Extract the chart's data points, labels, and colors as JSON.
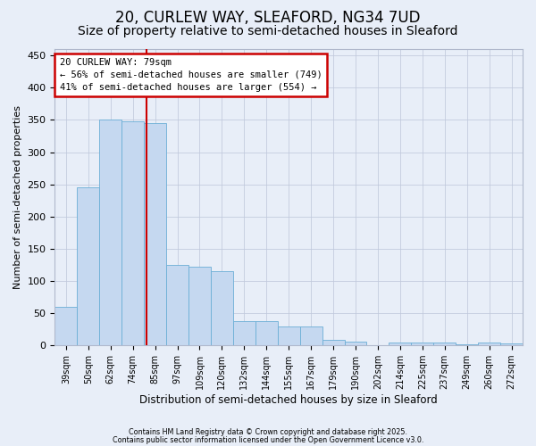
{
  "title": "20, CURLEW WAY, SLEAFORD, NG34 7UD",
  "subtitle": "Size of property relative to semi-detached houses in Sleaford",
  "xlabel": "Distribution of semi-detached houses by size in Sleaford",
  "ylabel": "Number of semi-detached properties",
  "categories": [
    "39sqm",
    "50sqm",
    "62sqm",
    "74sqm",
    "85sqm",
    "97sqm",
    "109sqm",
    "120sqm",
    "132sqm",
    "144sqm",
    "155sqm",
    "167sqm",
    "179sqm",
    "190sqm",
    "202sqm",
    "214sqm",
    "225sqm",
    "237sqm",
    "249sqm",
    "260sqm",
    "272sqm"
  ],
  "bar_heights": [
    60,
    245,
    350,
    348,
    345,
    125,
    122,
    115,
    38,
    38,
    30,
    30,
    8,
    6,
    0,
    5,
    5,
    4,
    2,
    5,
    3
  ],
  "bar_color": "#c5d8f0",
  "bar_edge_color": "#6baed6",
  "vline_x": 3.62,
  "vline_color": "#cc0000",
  "annotation_line1": "20 CURLEW WAY: 79sqm",
  "annotation_line2": "← 56% of semi-detached houses are smaller (749)",
  "annotation_line3": "41% of semi-detached houses are larger (554) →",
  "annotation_box_facecolor": "#ffffff",
  "annotation_box_edgecolor": "#cc0000",
  "footnote1": "Contains HM Land Registry data © Crown copyright and database right 2025.",
  "footnote2": "Contains public sector information licensed under the Open Government Licence v3.0.",
  "background_color": "#e8eef8",
  "plot_bg_color": "#e8eef8",
  "ylim": [
    0,
    460
  ],
  "yticks": [
    0,
    50,
    100,
    150,
    200,
    250,
    300,
    350,
    400,
    450
  ],
  "title_fontsize": 12,
  "subtitle_fontsize": 10,
  "bar_width": 1.0
}
